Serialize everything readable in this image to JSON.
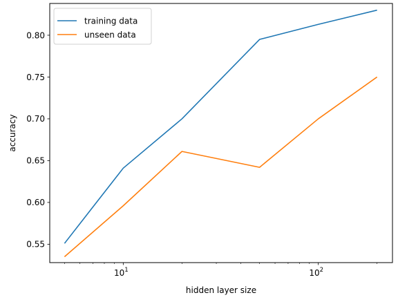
{
  "chart_data": {
    "type": "line",
    "xscale": "log",
    "xlabel": "hidden layer size",
    "ylabel": "accuracy",
    "xlim": [
      4.2,
      240
    ],
    "ylim": [
      0.528,
      0.838
    ],
    "x_ticks": [
      {
        "value": 10,
        "label": "10",
        "exp": "1"
      },
      {
        "value": 100,
        "label": "10",
        "exp": "2"
      }
    ],
    "x_minor_ticks": [
      5,
      6,
      7,
      8,
      9,
      20,
      30,
      40,
      50,
      60,
      70,
      80,
      90,
      200
    ],
    "y_ticks": [
      0.55,
      0.6,
      0.65,
      0.7,
      0.75,
      0.8
    ],
    "y_tick_labels": [
      "0.55",
      "0.60",
      "0.65",
      "0.70",
      "0.75",
      "0.80"
    ],
    "grid": false,
    "legend_position": "top-left",
    "x": [
      5,
      10,
      20,
      50,
      100,
      200
    ],
    "series": [
      {
        "name": "training data",
        "color": "#1f77b4",
        "values": [
          0.551,
          0.641,
          0.7,
          0.795,
          0.813,
          0.83
        ]
      },
      {
        "name": "unseen data",
        "color": "#ff7f0e",
        "values": [
          0.535,
          0.596,
          0.661,
          0.642,
          0.7,
          0.75
        ]
      }
    ]
  }
}
